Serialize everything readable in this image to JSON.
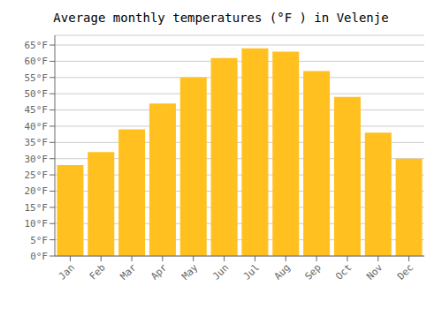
{
  "chart_data": {
    "type": "bar",
    "title": "Average monthly temperatures (°F ) in Velenje",
    "categories": [
      "Jan",
      "Feb",
      "Mar",
      "Apr",
      "May",
      "Jun",
      "Jul",
      "Aug",
      "Sep",
      "Oct",
      "Nov",
      "Dec"
    ],
    "values": [
      28,
      32,
      39,
      47,
      55,
      61,
      64,
      63,
      57,
      49,
      38,
      30
    ],
    "color": "#FFC020",
    "ylim": [
      0,
      68
    ],
    "yticks": [
      {
        "value": 0,
        "label": "0°F"
      },
      {
        "value": 5,
        "label": "5°F"
      },
      {
        "value": 10,
        "label": "10°F"
      },
      {
        "value": 15,
        "label": "15°F"
      },
      {
        "value": 20,
        "label": "20°F"
      },
      {
        "value": 25,
        "label": "25°F"
      },
      {
        "value": 30,
        "label": "30°F"
      },
      {
        "value": 35,
        "label": "35°F"
      },
      {
        "value": 40,
        "label": "40°F"
      },
      {
        "value": 45,
        "label": "45°F"
      },
      {
        "value": 50,
        "label": "50°F"
      },
      {
        "value": 55,
        "label": "55°F"
      },
      {
        "value": 60,
        "label": "60°F"
      },
      {
        "value": 65,
        "label": "65°F"
      }
    ],
    "grid": true
  }
}
